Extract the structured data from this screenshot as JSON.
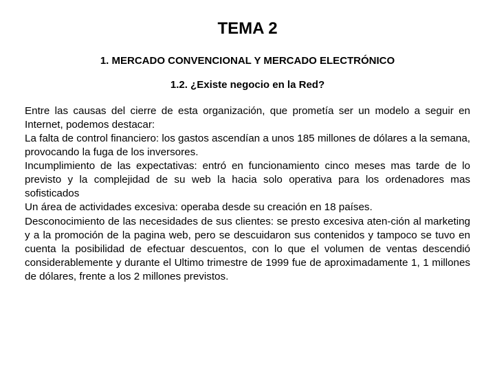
{
  "document": {
    "title": "TEMA 2",
    "subtitle1": "1. MERCADO CONVENCIONAL Y MERCADO ELECTRÓNICO",
    "subtitle2": "1.2. ¿Existe negocio en la Red?",
    "body": "Entre las causas del cierre de esta organización, que prometía ser un modelo a seguir en Internet, podemos destacar:\nLa falta de control financiero: los gastos ascendían a unos 185 millones de dólares a la semana, provocando la fuga de los inversores.\nIncumplimiento de las expectativas: entró en funcionamiento cinco meses mas tarde de lo previsto y la complejidad de su web la hacia solo operativa para los ordenadores mas sofisticados\nUn área de actividades excesiva: operaba desde su creación en 18 países.\nDesconocimiento de las necesidades de sus clientes: se presto excesiva aten-ción al marketing y a la promoción de la pagina web, pero se descuidaron sus contenidos y tampoco se tuvo en cuenta la posibilidad de efectuar descuentos, con lo que el volumen de ventas descendió considerablemente y durante el Ultimo trimestre de 1999 fue de aproximadamente 1, 1 millones de dólares, frente a los 2 millones previstos.",
    "title_fontsize": 24,
    "subtitle_fontsize": 15,
    "body_fontsize": 15.2,
    "text_color": "#000000",
    "background_color": "#ffffff"
  }
}
